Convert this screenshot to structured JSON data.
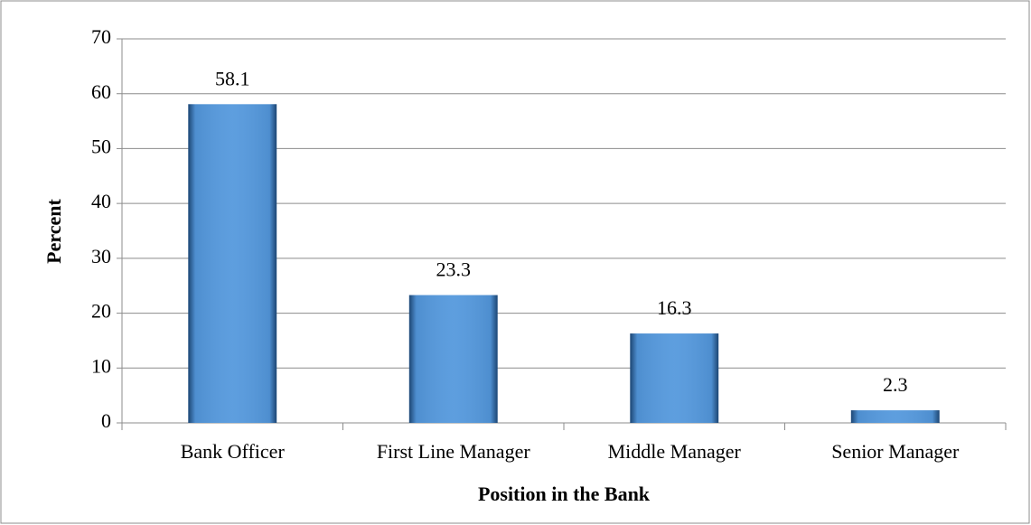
{
  "chart_data": {
    "type": "bar",
    "categories": [
      "Bank Officer",
      "First Line Manager",
      "Middle Manager",
      "Senior Manager"
    ],
    "values": [
      58.1,
      23.3,
      16.3,
      2.3
    ],
    "color": "#5599dd",
    "x_label": "Position in the Bank",
    "y_label": "Percent",
    "ylim": [
      0,
      70
    ],
    "yticks": [
      0,
      10,
      20,
      30,
      40,
      50,
      60,
      70
    ],
    "grid": true
  }
}
